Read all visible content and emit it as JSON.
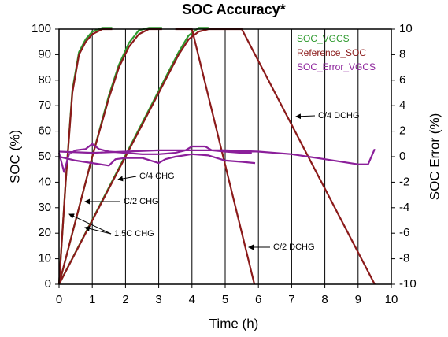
{
  "chart_data": {
    "type": "line",
    "title": "SOC Accuracy*",
    "x_label": "Time (h)",
    "y_label": "SOC (%)",
    "y2_label": "SOC Error (%)",
    "xlim": [
      0,
      10
    ],
    "xticks": [
      0,
      1,
      2,
      3,
      4,
      5,
      6,
      7,
      8,
      9,
      10
    ],
    "ylim": [
      0,
      100
    ],
    "yticks": [
      0,
      10,
      20,
      30,
      40,
      50,
      60,
      70,
      80,
      90,
      100
    ],
    "y2lim": [
      -10,
      10
    ],
    "y2ticks": [
      -10,
      -8,
      -6,
      -4,
      -2,
      0,
      2,
      4,
      6,
      8,
      10
    ],
    "grid": "x",
    "legend": "upper right",
    "series": [
      {
        "name": "SOC_VGCS",
        "color": "#2e9a2e",
        "x": [
          0,
          0.2,
          0.4,
          0.6,
          0.8,
          1.0,
          1.3,
          1.6,
          null,
          0,
          0.5,
          1.0,
          1.5,
          1.8,
          2.1,
          2.4,
          2.7,
          3.1,
          null,
          0,
          3.6,
          3.9,
          4.2,
          4.5
        ],
        "values": [
          0,
          40,
          76,
          91,
          96,
          99,
          100.5,
          100.5,
          null,
          0,
          25,
          50,
          74,
          86,
          94.5,
          99.5,
          100.5,
          100.5,
          null,
          0,
          91,
          97.5,
          100.5,
          100.5
        ]
      },
      {
        "name": "Reference_SOC",
        "color": "#8b1a1a",
        "x": [
          0,
          0.2,
          0.4,
          0.6,
          0.8,
          1.0,
          1.3,
          1.6,
          null,
          0,
          0.5,
          1.0,
          1.5,
          1.8,
          2.1,
          2.4,
          2.7,
          3.1,
          null,
          0,
          3.6,
          3.9,
          4.2,
          4.5,
          null,
          3.5,
          4.0,
          5.88,
          null,
          4.5,
          5.5,
          9.5
        ],
        "values": [
          0,
          40,
          75,
          90,
          95,
          98,
          100,
          100,
          null,
          0,
          25,
          50,
          73,
          85,
          93,
          98,
          100,
          100,
          null,
          0,
          90,
          96,
          99,
          100,
          null,
          100,
          100,
          0,
          null,
          100,
          100,
          0
        ]
      },
      {
        "name": "SOC_Error_VGCS",
        "color": "#8b1f9a",
        "axis": "y2",
        "x": [
          0,
          0.15,
          0.3,
          0.5,
          0.8,
          1.0,
          1.2,
          1.5,
          2,
          2.5,
          3,
          3.5,
          3.8,
          4.0,
          4.4,
          4.6,
          5,
          5.5,
          5.8,
          null,
          0,
          0.5,
          1,
          1.5,
          1.7,
          2,
          2.5,
          3,
          3.2,
          3.5,
          4,
          4.5,
          5,
          5.5,
          5.9,
          null,
          0,
          1,
          2,
          3,
          4,
          5,
          6,
          7,
          8,
          9,
          9.3,
          9.5
        ],
        "values": [
          0.3,
          -1.2,
          0.2,
          0.5,
          0.6,
          1.0,
          0.6,
          0.4,
          0.3,
          0.2,
          0.2,
          0.3,
          0.5,
          0.8,
          0.8,
          0.5,
          0.4,
          0.3,
          0.3,
          null,
          0,
          -0.3,
          -0.5,
          -0.7,
          -0.2,
          -0.1,
          -0.1,
          -0.5,
          -0.2,
          0,
          0.2,
          0.1,
          -0.3,
          -0.4,
          -0.5,
          null,
          0.4,
          0.3,
          0.4,
          0.5,
          0.5,
          0.5,
          0.4,
          0.2,
          -0.2,
          -0.6,
          -0.6,
          0.6
        ]
      }
    ],
    "annotations": [
      "C/4 DCHG",
      "C/4 CHG",
      "C/2 CHG",
      "1.5C CHG",
      "C/2 DCHG"
    ]
  }
}
